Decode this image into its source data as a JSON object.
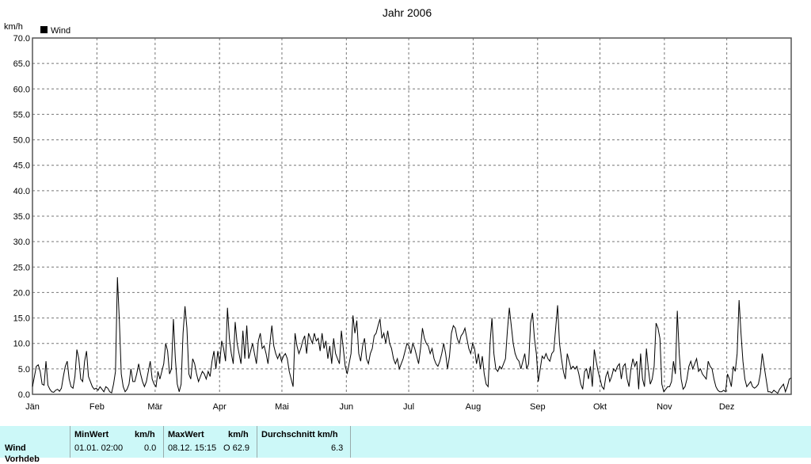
{
  "chart_data": {
    "type": "line",
    "title": "Jahr 2006",
    "ylabel": "km/h",
    "legend": "Wind",
    "legend_position": "top-left",
    "grid": true,
    "ylim": [
      0,
      70
    ],
    "yticks": [
      "0.0",
      "5.0",
      "10.0",
      "15.0",
      "20.0",
      "25.0",
      "30.0",
      "35.0",
      "40.0",
      "45.0",
      "50.0",
      "55.0",
      "60.0",
      "65.0",
      "70.0"
    ],
    "months": [
      "Jän",
      "Feb",
      "Mär",
      "Apr",
      "Mai",
      "Jun",
      "Jul",
      "Aug",
      "Sep",
      "Okt",
      "Nov",
      "Dez"
    ],
    "color": "#000000",
    "series": [
      {
        "name": "Wind",
        "values": [
          1.5,
          3.5,
          5.5,
          5.8,
          4.5,
          2.0,
          1.8,
          6.5,
          1.8,
          1.0,
          0.5,
          0.4,
          0.8,
          1.0,
          0.6,
          1.2,
          3.5,
          5.5,
          6.5,
          3.0,
          1.5,
          1.2,
          3.5,
          8.8,
          7.0,
          3.0,
          2.5,
          6.5,
          8.5,
          3.5,
          2.5,
          1.5,
          1.0,
          1.2,
          0.8,
          1.5,
          1.0,
          0.5,
          1.5,
          1.2,
          0.5,
          0.3,
          2.0,
          4.5,
          23.0,
          14.5,
          4.0,
          1.5,
          0.5,
          1.0,
          2.0,
          5.0,
          2.5,
          2.5,
          4.0,
          6.0,
          4.0,
          2.5,
          1.5,
          2.5,
          4.5,
          6.5,
          3.0,
          2.0,
          1.5,
          4.5,
          3.0,
          4.5,
          6.0,
          10.0,
          8.5,
          4.0,
          5.0,
          14.8,
          7.0,
          2.0,
          0.5,
          2.0,
          12.0,
          17.3,
          13.0,
          4.0,
          3.0,
          7.0,
          6.0,
          4.0,
          2.5,
          3.5,
          4.5,
          4.0,
          3.0,
          4.5,
          3.5,
          6.5,
          8.5,
          5.0,
          8.5,
          6.0,
          10.5,
          9.0,
          6.5,
          17.0,
          11.0,
          8.0,
          6.0,
          14.2,
          10.0,
          8.0,
          6.0,
          12.5,
          7.0,
          13.5,
          7.0,
          8.5,
          10.0,
          8.0,
          6.0,
          10.5,
          12.0,
          9.0,
          9.5,
          8.0,
          6.0,
          10.0,
          13.5,
          9.5,
          8.0,
          7.0,
          8.0,
          6.5,
          7.5,
          8.0,
          7.0,
          4.5,
          3.0,
          1.5,
          12.0,
          9.5,
          8.0,
          9.0,
          10.5,
          11.5,
          8.0,
          12.0,
          11.0,
          10.0,
          12.0,
          10.5,
          11.0,
          8.5,
          12.0,
          9.0,
          10.5,
          7.0,
          9.5,
          6.0,
          11.0,
          8.0,
          7.0,
          6.0,
          12.5,
          9.0,
          5.5,
          4.0,
          6.0,
          8.0,
          15.5,
          12.0,
          14.5,
          8.0,
          6.5,
          9.5,
          11.0,
          7.0,
          6.0,
          8.0,
          9.0,
          11.5,
          12.0,
          13.5,
          14.8,
          11.0,
          12.0,
          10.0,
          12.5,
          10.0,
          9.0,
          7.0,
          6.0,
          7.0,
          5.0,
          6.0,
          7.0,
          8.5,
          10.0,
          9.5,
          8.0,
          10.0,
          9.0,
          7.5,
          6.0,
          9.0,
          13.0,
          11.0,
          10.0,
          9.5,
          8.0,
          9.0,
          7.0,
          6.0,
          5.5,
          6.5,
          8.0,
          10.0,
          8.0,
          5.0,
          7.5,
          12.0,
          13.5,
          13.0,
          11.0,
          10.0,
          11.5,
          12.0,
          13.0,
          11.0,
          9.0,
          8.0,
          10.0,
          9.0,
          6.0,
          8.0,
          5.0,
          7.5,
          4.0,
          2.0,
          1.5,
          10.0,
          15.0,
          8.0,
          5.0,
          4.5,
          5.5,
          5.0,
          6.0,
          7.0,
          12.5,
          17.0,
          13.5,
          10.0,
          8.0,
          7.0,
          6.5,
          5.0,
          6.5,
          8.0,
          5.0,
          6.0,
          14.0,
          16.0,
          11.0,
          8.0,
          2.5,
          5.0,
          7.5,
          7.0,
          8.0,
          7.0,
          6.5,
          8.0,
          8.5,
          13.0,
          17.5,
          10.0,
          7.0,
          4.5,
          3.0,
          8.0,
          6.5,
          5.0,
          5.5,
          5.0,
          5.5,
          4.0,
          2.0,
          1.0,
          4.5,
          5.0,
          3.0,
          5.5,
          1.5,
          8.8,
          6.5,
          4.5,
          3.0,
          1.5,
          1.0,
          3.5,
          4.5,
          2.5,
          3.5,
          5.0,
          4.5,
          5.5,
          6.0,
          3.0,
          5.5,
          6.0,
          3.0,
          1.5,
          5.0,
          7.0,
          5.5,
          6.5,
          1.0,
          8.0,
          3.0,
          1.5,
          9.0,
          5.0,
          2.0,
          3.0,
          5.5,
          14.0,
          13.0,
          11.0,
          2.0,
          0.5,
          1.0,
          1.5,
          1.5,
          2.5,
          6.5,
          4.0,
          16.4,
          8.0,
          3.0,
          1.0,
          1.5,
          3.0,
          5.5,
          6.5,
          5.0,
          6.0,
          7.0,
          4.5,
          5.0,
          4.0,
          3.5,
          3.0,
          6.5,
          5.5,
          5.0,
          3.0,
          1.5,
          0.8,
          0.5,
          0.5,
          0.8,
          0.5,
          4.0,
          3.0,
          1.5,
          5.5,
          4.5,
          8.0,
          18.5,
          12.0,
          6.5,
          3.0,
          1.5,
          2.0,
          2.5,
          1.5,
          1.2,
          1.5,
          2.0,
          4.0,
          8.0,
          5.5,
          3.0,
          0.5,
          0.5,
          0.3,
          0.8,
          0.5,
          0.2,
          1.0,
          1.5,
          2.0,
          0.5,
          1.5,
          3.0,
          3.2
        ]
      }
    ]
  },
  "stats": {
    "row1": "Wind",
    "row2": "Vorhdeb",
    "min_header": "MinWert",
    "min_unit": "km/h",
    "min_datetime": "01.01.  02:00",
    "min_value": "0.0",
    "max_header": "MaxWert",
    "max_unit": "km/h",
    "max_datetime": "08.12.  15:15",
    "max_value": "O 62.9",
    "avg_header": "Durchschnitt km/h",
    "avg_value": "6.3"
  }
}
